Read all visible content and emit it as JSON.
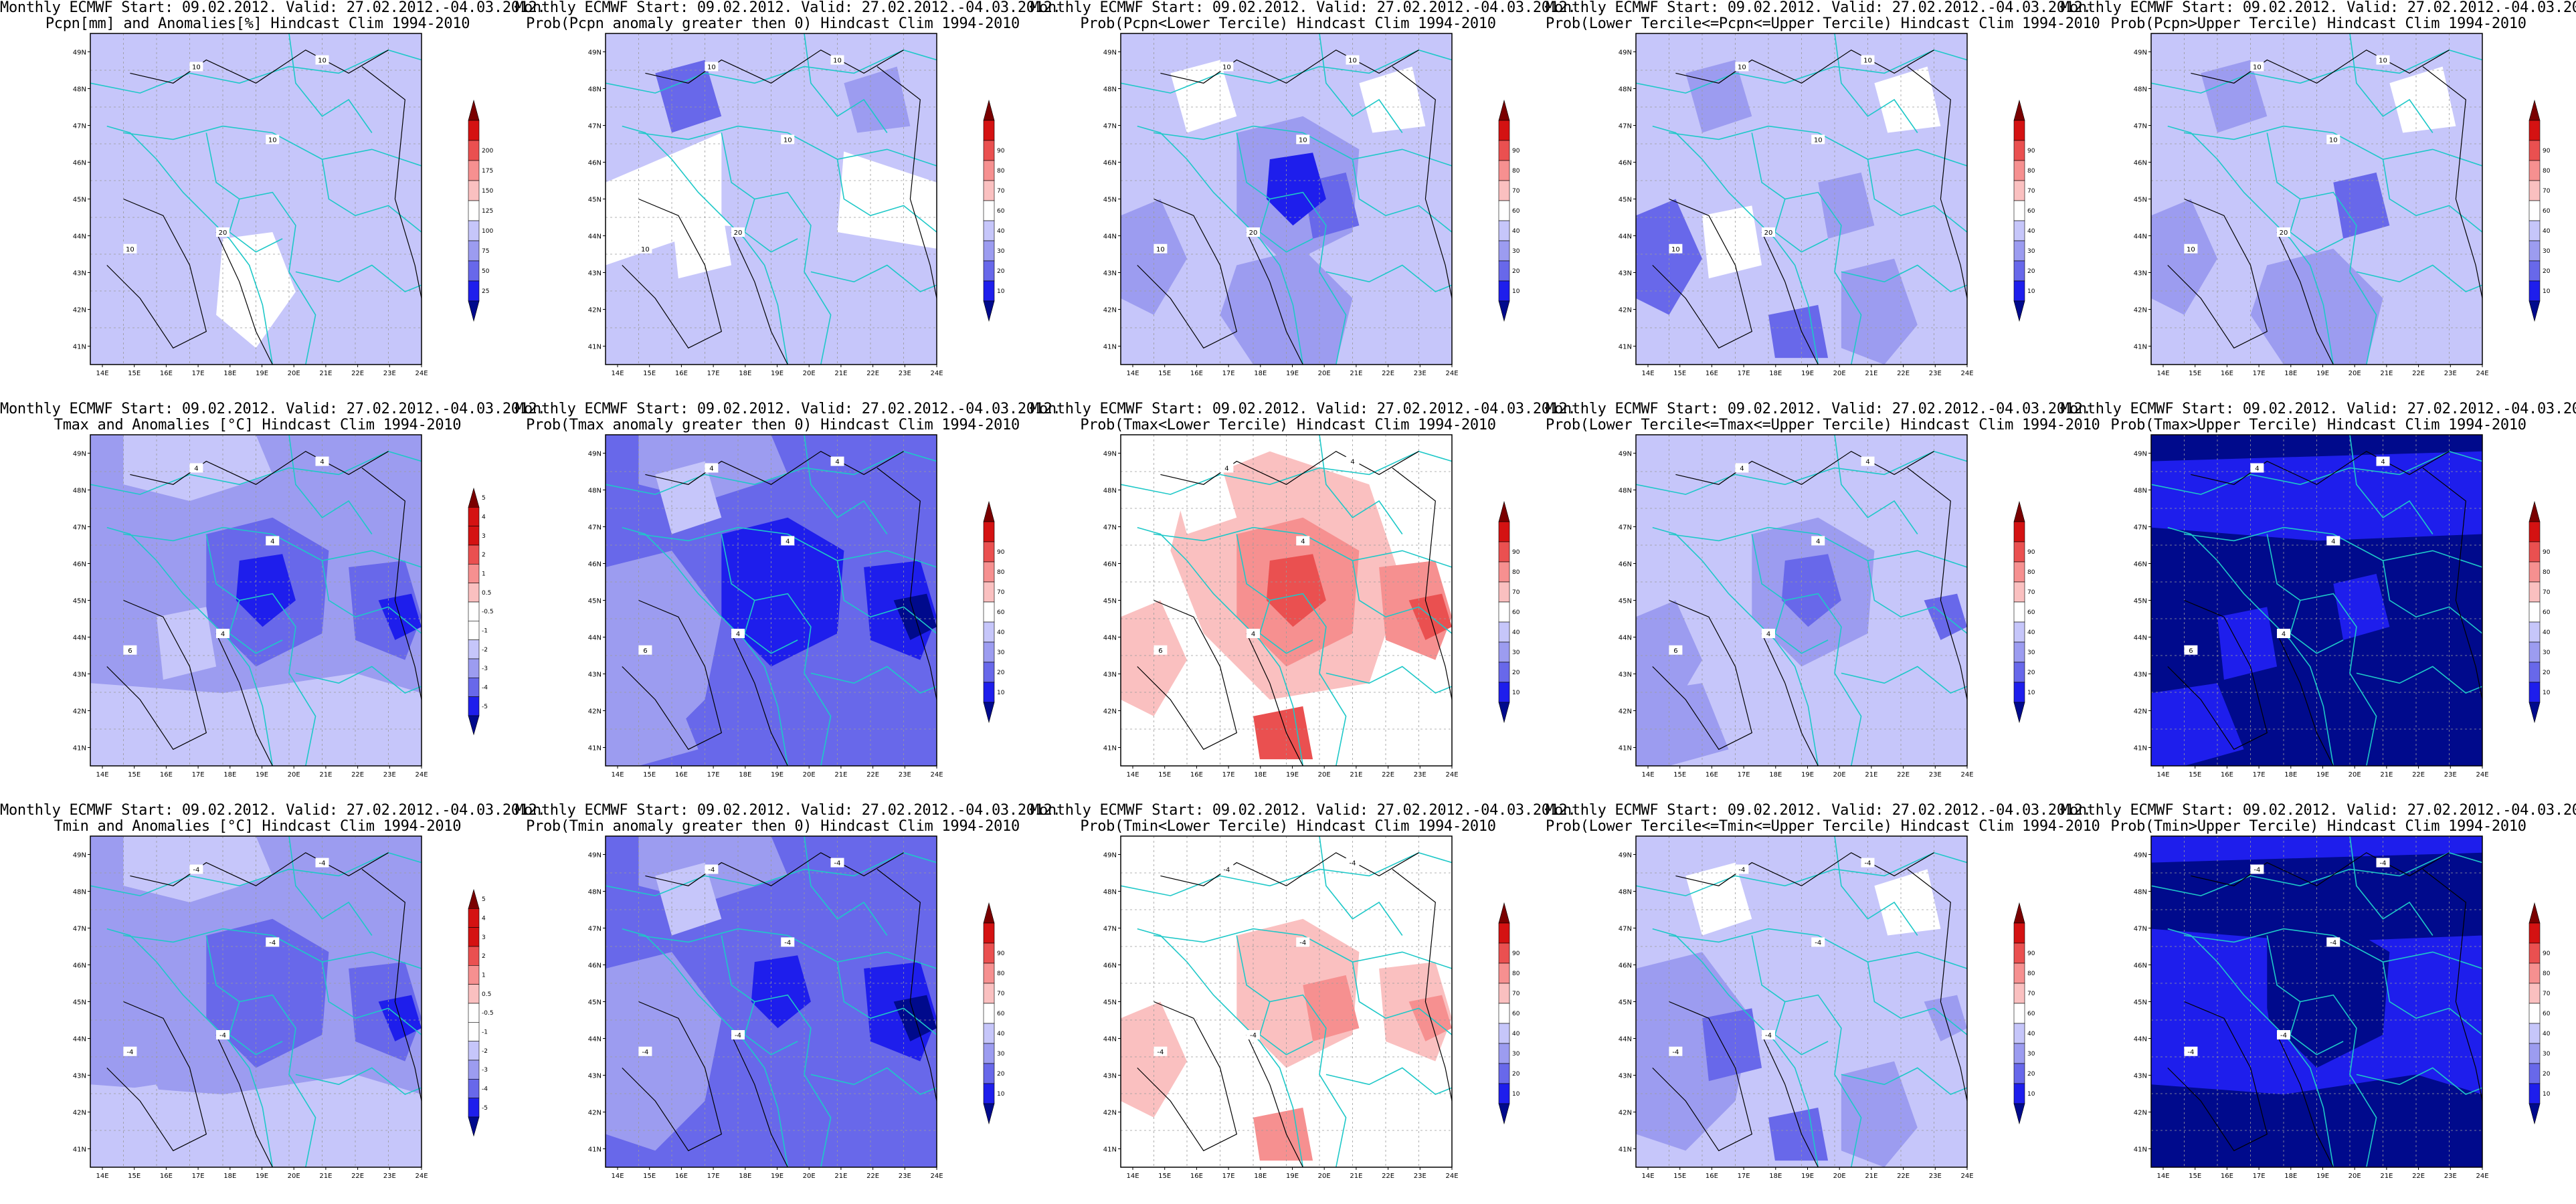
{
  "header_line": "Monthly ECMWF Start: 09.02.2012. Valid: 27.02.2012.-04.03.2012.",
  "lat_labels": [
    "41N",
    "42N",
    "43N",
    "44N",
    "45N",
    "46N",
    "47N",
    "48N",
    "49N"
  ],
  "lon_labels": [
    "14E",
    "15E",
    "16E",
    "17E",
    "18E",
    "19E",
    "20E",
    "21E",
    "22E",
    "23E",
    "24E"
  ],
  "scales": {
    "precip": [
      "25",
      "50",
      "75",
      "100",
      "125",
      "150",
      "175",
      "200"
    ],
    "prob": [
      "10",
      "20",
      "30",
      "40",
      "60",
      "70",
      "80",
      "90"
    ],
    "temp": [
      "-5",
      "-4",
      "-3",
      "-2",
      "-1",
      "-0.5",
      "0.5",
      "1",
      "2",
      "3",
      "4",
      "5"
    ]
  },
  "colors": {
    "very_dark_blue": "#000a8c",
    "dark_blue": "#1e1eec",
    "mid_blue": "#6868ea",
    "light_blue": "#9c9cf0",
    "pale_blue": "#c6c6fa",
    "white": "#ffffff",
    "pale_red": "#fac0c0",
    "light_red": "#f69090",
    "mid_red": "#ea5050",
    "red": "#d41212",
    "dark_red": "#7a0000",
    "coast": "#1ec8c8",
    "contour": "#000000"
  },
  "panels": [
    {
      "title": "Pcpn[mm] and Anomalies[%] Hindcast Clim 1994-2010",
      "scale": "precip",
      "base": "pale_blue",
      "pattern": "p_anom",
      "contour": [
        "10",
        "10",
        "10",
        "20",
        "10"
      ]
    },
    {
      "title": "Prob(Pcpn anomaly greater then 0) Hindcast Clim 1994-2010",
      "scale": "prob",
      "base": "pale_blue",
      "pattern": "p_prob",
      "contour": [
        "10",
        "10",
        "10",
        "20",
        "10"
      ]
    },
    {
      "title": "Prob(Pcpn<Lower Tercile) Hindcast Clim 1994-2010",
      "scale": "prob",
      "base": "pale_blue",
      "pattern": "p_low",
      "contour": [
        "10",
        "10",
        "10",
        "20",
        "10"
      ]
    },
    {
      "title": "Prob(Lower Tercile<=Pcpn<=Upper Tercile) Hindcast Clim 1994-2010",
      "scale": "prob",
      "base": "pale_blue",
      "pattern": "p_mid",
      "contour": [
        "10",
        "10",
        "10",
        "20",
        "10"
      ]
    },
    {
      "title": "Prob(Pcpn>Upper Tercile) Hindcast Clim 1994-2010",
      "scale": "prob",
      "base": "pale_blue",
      "pattern": "p_up",
      "contour": [
        "10",
        "10",
        "10",
        "20",
        "10"
      ]
    },
    {
      "title": "Tmax and Anomalies [°C] Hindcast Clim 1994-2010",
      "scale": "temp",
      "base": "light_blue",
      "pattern": "tx_anom",
      "contour": [
        "4",
        "4",
        "4",
        "4",
        "6"
      ]
    },
    {
      "title": "Prob(Tmax anomaly greater then 0) Hindcast Clim 1994-2010",
      "scale": "prob",
      "base": "mid_blue",
      "pattern": "tx_prob",
      "contour": [
        "4",
        "4",
        "4",
        "4",
        "6"
      ]
    },
    {
      "title": "Prob(Tmax<Lower Tercile) Hindcast Clim 1994-2010",
      "scale": "prob",
      "base": "white",
      "pattern": "tx_low",
      "contour": [
        "4",
        "4",
        "4",
        "4",
        "6"
      ]
    },
    {
      "title": "Prob(Lower Tercile<=Tmax<=Upper Tercile) Hindcast Clim 1994-2010",
      "scale": "prob",
      "base": "pale_blue",
      "pattern": "tx_mid",
      "contour": [
        "4",
        "4",
        "4",
        "4",
        "6"
      ]
    },
    {
      "title": "Prob(Tmax>Upper Tercile) Hindcast Clim 1994-2010",
      "scale": "prob",
      "base": "very_dark_blue",
      "pattern": "tx_up",
      "contour": [
        "4",
        "4",
        "4",
        "4",
        "6"
      ]
    },
    {
      "title": "Tmin and Anomalies [°C] Hindcast Clim 1994-2010",
      "scale": "temp",
      "base": "light_blue",
      "pattern": "tn_anom",
      "contour": [
        "-4",
        "-4",
        "-4",
        "-4",
        "-4"
      ]
    },
    {
      "title": "Prob(Tmin anomaly greater then 0) Hindcast Clim 1994-2010",
      "scale": "prob",
      "base": "mid_blue",
      "pattern": "tn_prob",
      "contour": [
        "-4",
        "-4",
        "-4",
        "-4",
        "-4"
      ]
    },
    {
      "title": "Prob(Tmin<Lower Tercile) Hindcast Clim 1994-2010",
      "scale": "prob",
      "base": "white",
      "pattern": "tn_low",
      "contour": [
        "-4",
        "-4",
        "-4",
        "-4",
        "-4"
      ]
    },
    {
      "title": "Prob(Lower Tercile<=Tmin<=Upper Tercile) Hindcast Clim 1994-2010",
      "scale": "prob",
      "base": "pale_blue",
      "pattern": "tn_mid",
      "contour": [
        "-4",
        "-4",
        "-4",
        "-4",
        "-4"
      ]
    },
    {
      "title": "Prob(Tmin>Upper Tercile) Hindcast Clim 1994-2010",
      "scale": "prob",
      "base": "dark_blue",
      "pattern": "tn_up",
      "contour": [
        "-4",
        "-4",
        "-4",
        "-4",
        "-4"
      ]
    }
  ]
}
